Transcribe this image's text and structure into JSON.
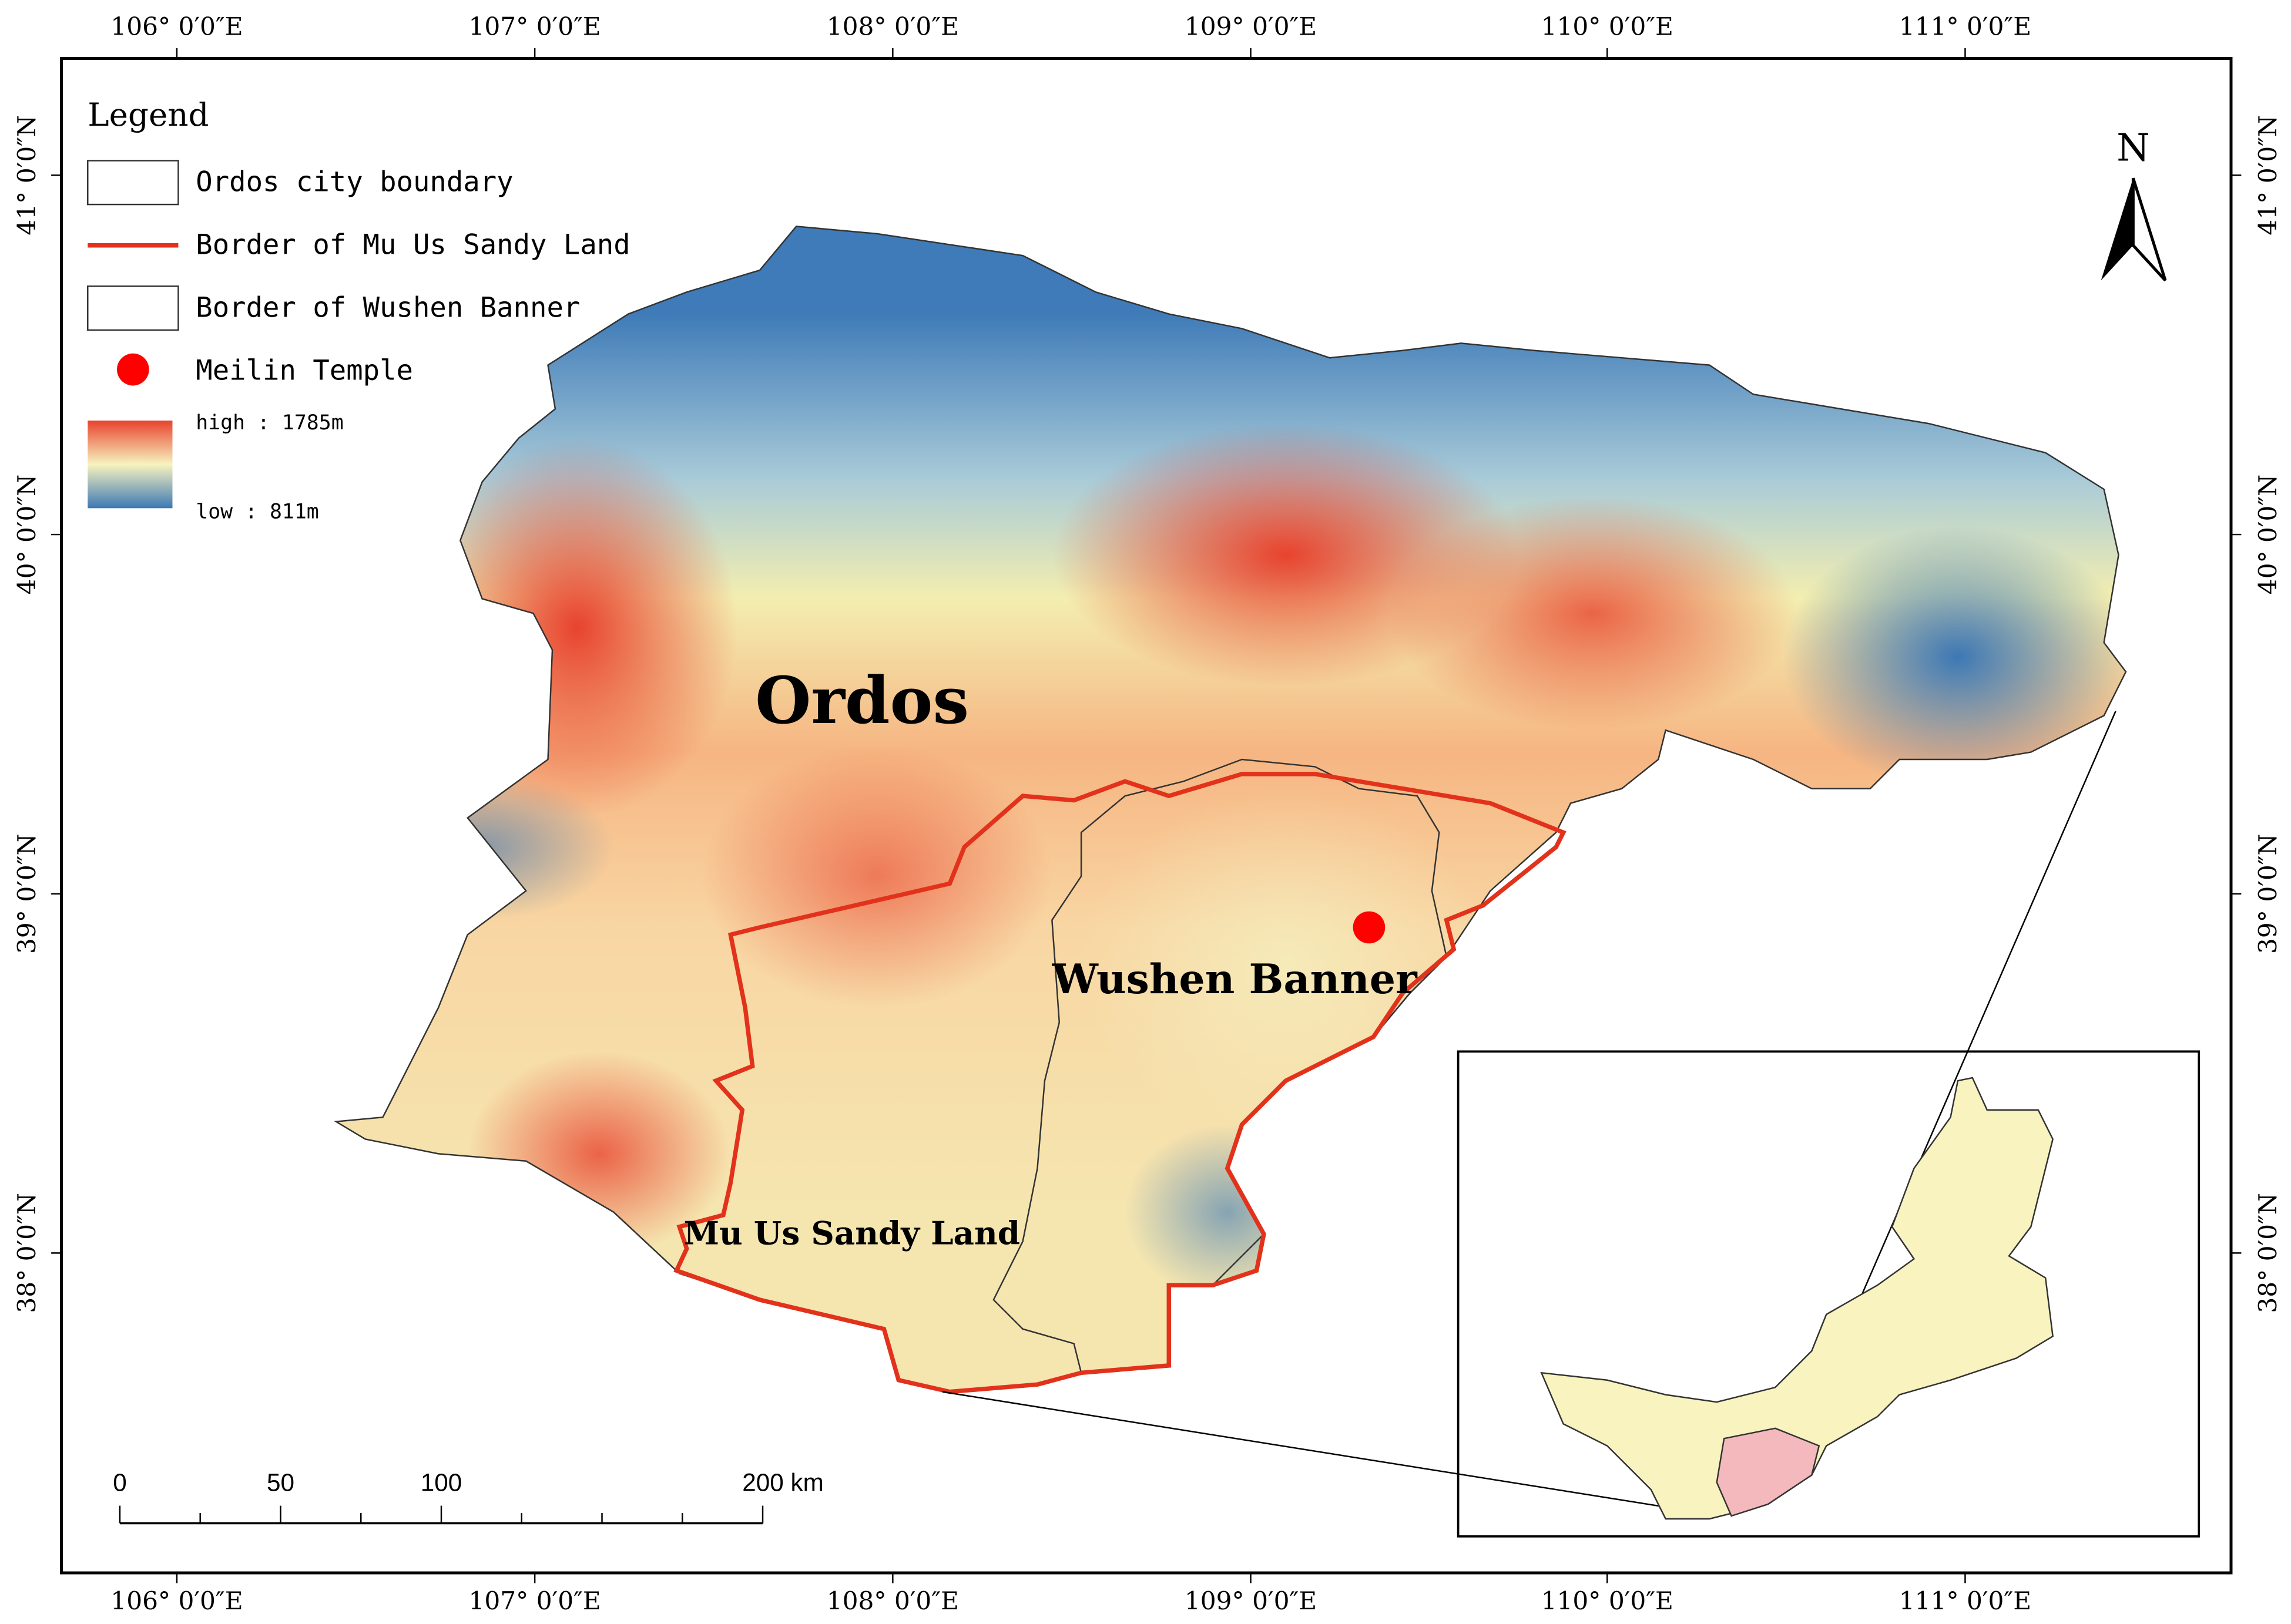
{
  "legend": {
    "title": "Legend",
    "items": [
      "Ordos city boundary",
      "Border of Mu Us Sandy Land",
      "Border of Wushen Banner",
      "Meilin Temple"
    ],
    "high": "high : 1785m",
    "low": "low : 811m"
  },
  "axes": {
    "longitude": [
      "106° 0′0″E",
      "107° 0′0″E",
      "108° 0′0″E",
      "109° 0′0″E",
      "110° 0′0″E",
      "111° 0′0″E"
    ],
    "latitude": [
      "41° 0′0″N",
      "40° 0′0″N",
      "39° 0′0″N",
      "38° 0′0″N"
    ]
  },
  "north": "N",
  "labels": {
    "ordos": "Ordos",
    "wushen": "Wushen Banner",
    "mu_us": "Mu Us Sandy Land"
  },
  "scale_bar": [
    "0",
    "50",
    "100",
    "200 km"
  ]
}
